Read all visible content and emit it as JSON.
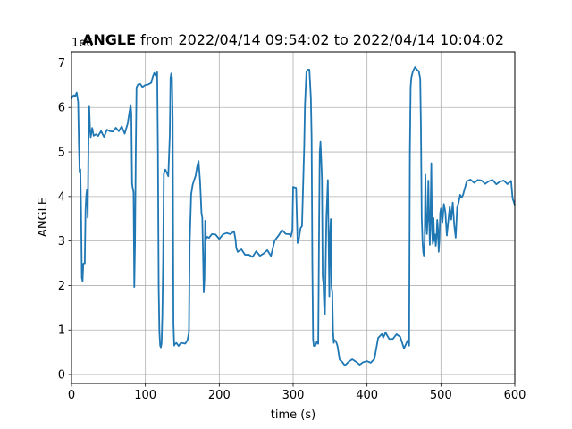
{
  "chart_data": {
    "type": "line",
    "title_bold": "ANGLE",
    "title_rest": " from 2022/04/14 09:54:02 to 2022/04/14 10:04:02",
    "xlabel": "time (s)",
    "ylabel": "ANGLE",
    "y_offset_text": "1e6",
    "xlim": [
      0,
      600
    ],
    "ylim": [
      -0.2,
      7.25
    ],
    "y_multiplier": 1000000,
    "xticks": [
      0,
      100,
      200,
      300,
      400,
      500,
      600
    ],
    "yticks": [
      0,
      1,
      2,
      3,
      4,
      5,
      6,
      7
    ],
    "grid": true,
    "line_color": "#1f77b4",
    "series": [
      {
        "x": [
          0,
          3,
          5,
          7,
          9,
          10,
          11,
          12,
          13,
          14,
          15,
          16,
          17,
          18,
          19,
          20,
          21,
          22,
          23,
          24,
          25,
          26,
          28,
          30,
          33,
          36,
          40,
          44,
          48,
          52,
          56,
          60,
          64,
          68,
          72,
          76,
          79,
          80,
          81,
          82,
          83,
          84,
          85,
          86,
          87,
          88,
          90,
          93,
          96,
          100,
          104,
          108,
          110,
          112,
          114,
          116,
          117,
          118,
          119,
          120,
          121,
          122,
          123,
          124,
          125,
          127,
          129,
          131,
          133,
          134,
          135,
          136,
          137,
          138,
          139,
          140,
          142,
          145,
          148,
          151,
          154,
          157,
          159,
          160,
          162,
          164,
          166,
          168,
          170,
          172,
          174,
          176,
          177,
          178,
          179,
          180,
          181,
          182,
          184,
          186,
          190,
          195,
          200,
          205,
          210,
          215,
          220,
          222,
          223,
          225,
          230,
          235,
          240,
          245,
          250,
          255,
          260,
          265,
          270,
          275,
          280,
          285,
          290,
          295,
          297,
          299,
          300,
          302,
          304,
          306,
          308,
          310,
          312,
          314,
          315,
          316,
          318,
          320,
          322,
          324,
          325,
          326,
          327,
          328,
          330,
          332,
          334,
          335,
          336,
          337,
          338,
          339,
          340,
          341,
          342,
          343,
          345,
          347,
          349,
          350,
          351,
          352,
          353,
          354,
          355,
          356,
          358,
          360,
          363,
          366,
          370,
          375,
          380,
          385,
          390,
          395,
          400,
          405,
          410,
          415,
          420,
          422,
          425,
          430,
          435,
          440,
          445,
          450,
          455,
          457,
          458,
          459,
          460,
          462,
          465,
          468,
          470,
          472,
          473,
          474,
          475,
          476,
          477,
          478,
          479,
          480,
          481,
          482,
          483,
          484,
          485,
          486,
          487,
          488,
          489,
          490,
          491,
          492,
          493,
          494,
          495,
          496,
          497,
          498,
          499,
          500,
          502,
          504,
          506,
          508,
          510,
          512,
          514,
          516,
          518,
          520,
          522,
          524,
          526,
          528,
          530,
          535,
          540,
          545,
          550,
          555,
          560,
          565,
          570,
          575,
          580,
          585,
          590,
          595,
          597,
          600
        ],
        "y": [
          6.2,
          6.22,
          6.25,
          6.3,
          6.1,
          5.2,
          4.5,
          4.6,
          3.7,
          2.2,
          2.1,
          2.5,
          2.55,
          2.5,
          3.7,
          4.0,
          4.1,
          3.5,
          5.2,
          6.0,
          5.5,
          5.3,
          5.5,
          5.4,
          5.45,
          5.4,
          5.5,
          5.4,
          5.55,
          5.5,
          5.4,
          5.5,
          5.45,
          5.55,
          5.4,
          5.6,
          5.9,
          6.0,
          5.9,
          4.3,
          4.2,
          4.1,
          2.0,
          3.0,
          5.0,
          6.4,
          6.5,
          6.5,
          6.45,
          6.5,
          6.5,
          6.55,
          6.7,
          6.8,
          6.75,
          6.8,
          5.0,
          2.0,
          1.0,
          0.7,
          0.6,
          0.7,
          1.3,
          2.5,
          4.5,
          4.6,
          4.5,
          4.5,
          5.4,
          6.7,
          6.8,
          6.7,
          5.8,
          1.2,
          0.7,
          0.65,
          0.7,
          0.6,
          0.7,
          0.7,
          0.65,
          0.75,
          1.0,
          3.0,
          4.1,
          4.3,
          4.4,
          4.5,
          4.7,
          4.8,
          4.3,
          3.6,
          3.5,
          2.7,
          1.8,
          2.1,
          3.4,
          3.1,
          3.15,
          3.1,
          3.2,
          3.15,
          3.1,
          3.2,
          3.15,
          3.1,
          3.2,
          3.0,
          2.8,
          2.7,
          2.8,
          2.65,
          2.75,
          2.7,
          2.8,
          2.7,
          2.75,
          2.8,
          2.7,
          2.95,
          3.1,
          3.2,
          3.1,
          3.15,
          3.1,
          3.2,
          4.2,
          4.25,
          4.2,
          3.0,
          3.1,
          3.3,
          3.35,
          4.6,
          5.1,
          6.0,
          6.8,
          6.8,
          6.8,
          6.2,
          5.3,
          2.5,
          0.8,
          0.65,
          0.7,
          0.75,
          0.7,
          3.0,
          5.0,
          5.2,
          4.8,
          4.4,
          2.2,
          2.0,
          1.5,
          1.3,
          3.5,
          4.4,
          1.8,
          3.2,
          3.5,
          2.0,
          1.9,
          1.0,
          0.7,
          0.75,
          0.7,
          0.6,
          0.3,
          0.25,
          0.2,
          0.3,
          0.35,
          0.3,
          0.25,
          0.3,
          0.35,
          0.3,
          0.35,
          0.8,
          0.85,
          0.8,
          0.9,
          0.75,
          0.8,
          0.9,
          0.85,
          0.6,
          0.8,
          0.7,
          5.0,
          6.5,
          6.7,
          6.8,
          6.85,
          6.8,
          6.8,
          6.6,
          5.5,
          3.5,
          3.0,
          2.8,
          2.7,
          3.0,
          4.5,
          3.5,
          3.2,
          3.5,
          4.3,
          3.5,
          2.9,
          3.6,
          4.7,
          3.2,
          2.9,
          3.5,
          3.0,
          3.2,
          2.9,
          3.1,
          3.5,
          3.3,
          2.8,
          3.0,
          3.6,
          3.7,
          3.4,
          3.8,
          3.6,
          3.1,
          3.4,
          3.8,
          3.5,
          3.9,
          3.4,
          3.1,
          3.8,
          3.9,
          4.0,
          3.95,
          4.0,
          4.3,
          4.35,
          4.3,
          4.35,
          4.4,
          4.3,
          4.35,
          4.4,
          4.3,
          4.35,
          4.4,
          4.3,
          4.35,
          3.9,
          3.75
        ]
      }
    ]
  }
}
